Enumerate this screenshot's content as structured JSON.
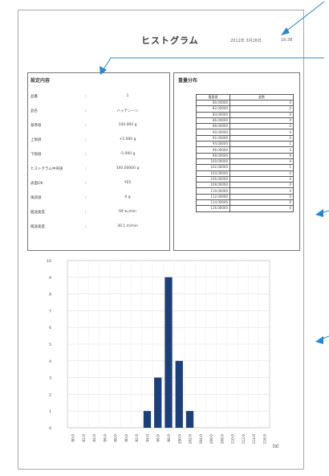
{
  "header": {
    "title": "ヒストグラム",
    "date": "2012年 3月26日",
    "time": "16:38"
  },
  "settings": {
    "title": "設定内容",
    "rows": [
      {
        "label": "品番",
        "value": "1"
      },
      {
        "label": "品名",
        "value": "ハッテンーン"
      },
      {
        "label": "基準値",
        "value": "100.000 g"
      },
      {
        "label": "上限値",
        "value": "+5.000 g"
      },
      {
        "label": "下限値",
        "value": "-5.000 g"
      },
      {
        "label": "ヒストグラム中央値",
        "value": "100.00000 g"
      },
      {
        "label": "表面OK",
        "value": "YES"
      },
      {
        "label": "風袋値",
        "value": "0 g"
      },
      {
        "label": "搬送速度",
        "value": "99 ℡/min"
      },
      {
        "label": "搬送速度",
        "value": "30.1 m/min"
      }
    ]
  },
  "distribution": {
    "title": "重量分布",
    "headers": [
      "重量値",
      "度数"
    ],
    "rows": [
      [
        "80.00000",
        "0"
      ],
      [
        "82.00000",
        "0"
      ],
      [
        "84.00000",
        "0"
      ],
      [
        "86.00000",
        "0"
      ],
      [
        "88.00000",
        "0"
      ],
      [
        "90.00000",
        "0"
      ],
      [
        "92.00000",
        "0"
      ],
      [
        "94.00000",
        "1"
      ],
      [
        "96.00000",
        "3"
      ],
      [
        "98.00000",
        "9"
      ],
      [
        "100.00000",
        "4"
      ],
      [
        "102.00000",
        "1"
      ],
      [
        "104.00000",
        "0"
      ],
      [
        "106.00000",
        "0"
      ],
      [
        "108.00000",
        "0"
      ],
      [
        "110.00000",
        "0"
      ],
      [
        "112.00000",
        "0"
      ],
      [
        "114.00000",
        "0"
      ],
      [
        "116.00000",
        "0"
      ]
    ]
  },
  "chart_data": {
    "type": "bar",
    "categories": [
      "80.0",
      "82.0",
      "84.0",
      "86.0",
      "88.0",
      "90.0",
      "92.0",
      "94.0",
      "96.0",
      "98.0",
      "100.0",
      "102.0",
      "104.0",
      "106.0",
      "108.0",
      "110.0",
      "112.0",
      "114.0",
      "116.0"
    ],
    "values": [
      0,
      0,
      0,
      0,
      0,
      0,
      0,
      1,
      3,
      9,
      4,
      1,
      0,
      0,
      0,
      0,
      0,
      0,
      0
    ],
    "ylim": [
      0,
      10
    ],
    "yticks": [
      0,
      1,
      2,
      3,
      4,
      5,
      6,
      7,
      8,
      9,
      10
    ],
    "xunit": "[g]",
    "grid": true,
    "bar_color": "#1d3f78"
  },
  "colors": {
    "arrow": "#2b86c8",
    "bar": "#1d3f78"
  }
}
